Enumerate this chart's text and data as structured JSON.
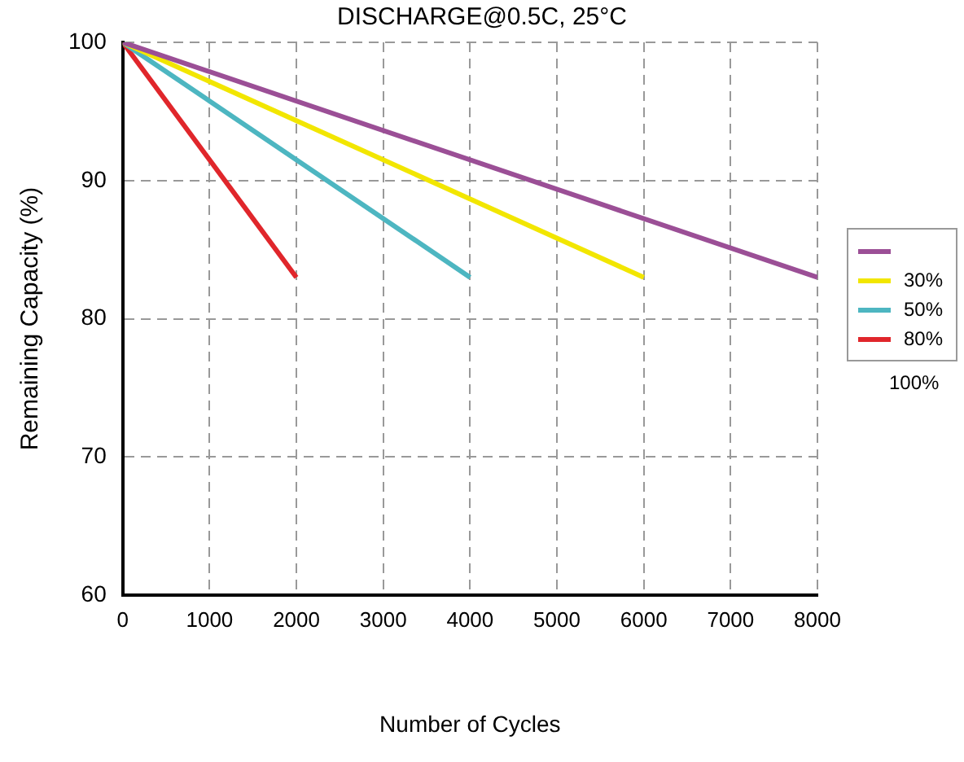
{
  "chart_data": {
    "type": "line",
    "title": "DISCHARGE@0.5C, 25°C",
    "xlabel": "Number of Cycles",
    "ylabel": "Remaining Capacity (%)",
    "xlim": [
      0,
      8000
    ],
    "xticks": [
      0,
      1000,
      2000,
      3000,
      4000,
      5000,
      6000,
      7000,
      8000
    ],
    "ylim": [
      60,
      100
    ],
    "yticks": [
      60,
      70,
      80,
      90,
      100
    ],
    "series": [
      {
        "color": "#9b4f96",
        "x": [
          0,
          8000
        ],
        "values": [
          100,
          83
        ]
      },
      {
        "name": "30%",
        "color": "#f2e600",
        "x": [
          0,
          6000
        ],
        "values": [
          100,
          83
        ]
      },
      {
        "name": "50%",
        "color": "#4db6c1",
        "x": [
          0,
          4000
        ],
        "values": [
          100,
          83
        ]
      },
      {
        "name": "80%",
        "color": "#e0262b",
        "x": [
          0,
          2000
        ],
        "values": [
          100,
          83
        ]
      }
    ],
    "annotations": [
      "100%"
    ],
    "grid": true,
    "legend": "right",
    "marker": "none",
    "line_style": "solid"
  }
}
